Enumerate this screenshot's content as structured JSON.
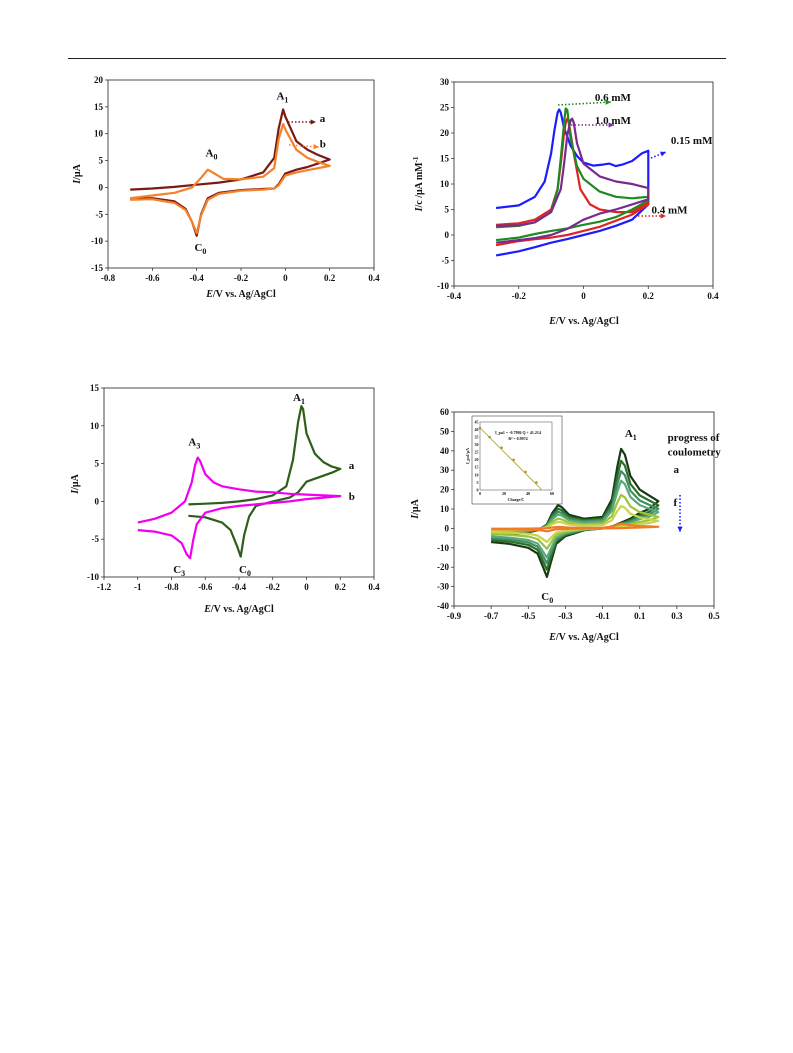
{
  "chart_data": [
    {
      "id": "p1",
      "type": "line",
      "xlabel": "E/V vs. Ag/AgCl",
      "ylabel": "I/μA",
      "xlim": [
        -0.8,
        0.4
      ],
      "ylim": [
        -15,
        20
      ],
      "xticks": [
        "-0.8",
        "-0.6",
        "-0.4",
        "-0.2",
        "0",
        "0.2",
        "0.4"
      ],
      "yticks": [
        "-15",
        "-10",
        "-5",
        "0",
        "5",
        "10",
        "15",
        "20"
      ],
      "series": [
        {
          "color": "#7a1a14",
          "x": [
            -0.7,
            -0.6,
            -0.5,
            -0.4,
            -0.3,
            -0.2,
            -0.1,
            -0.05,
            -0.03,
            -0.01,
            0.0,
            0.05,
            0.1,
            0.15,
            0.2,
            0.15,
            0.1,
            0.05,
            0.0,
            -0.03,
            -0.05,
            -0.1,
            -0.2,
            -0.3,
            -0.35,
            -0.38,
            -0.4,
            -0.42,
            -0.45,
            -0.5,
            -0.6,
            -0.7
          ],
          "y": [
            -0.4,
            -0.2,
            0.1,
            0.5,
            0.9,
            1.5,
            2.8,
            5.5,
            11.0,
            14.5,
            13.2,
            8.6,
            7.0,
            6.0,
            5.2,
            4.5,
            3.8,
            3.3,
            2.6,
            0.6,
            -0.2,
            -0.3,
            -0.5,
            -1.0,
            -2.0,
            -5.0,
            -9.0,
            -6.5,
            -4.0,
            -2.6,
            -2.0,
            -2.1
          ]
        },
        {
          "color": "#f5822a",
          "x": [
            -0.7,
            -0.6,
            -0.5,
            -0.42,
            -0.38,
            -0.35,
            -0.32,
            -0.28,
            -0.2,
            -0.1,
            -0.05,
            -0.03,
            -0.01,
            0.0,
            0.05,
            0.1,
            0.15,
            0.2,
            0.15,
            0.1,
            0.05,
            0.0,
            -0.03,
            -0.05,
            -0.1,
            -0.2,
            -0.3,
            -0.35,
            -0.38,
            -0.4,
            -0.42,
            -0.45,
            -0.5,
            -0.6,
            -0.7
          ],
          "y": [
            -2.0,
            -1.5,
            -1.0,
            0.0,
            1.8,
            3.3,
            2.6,
            1.6,
            1.5,
            2.0,
            3.6,
            9.0,
            11.8,
            10.8,
            7.0,
            5.5,
            4.7,
            4.0,
            3.6,
            3.2,
            2.8,
            2.2,
            0.4,
            -0.2,
            -0.4,
            -0.6,
            -1.2,
            -2.3,
            -5.2,
            -8.5,
            -6.5,
            -4.2,
            -2.9,
            -2.2,
            -2.3
          ]
        }
      ],
      "annotations": [
        {
          "text": "A",
          "sub": "1",
          "x": -0.04,
          "y": 16.4
        },
        {
          "text": "A",
          "sub": "0",
          "x": -0.36,
          "y": 5.8
        },
        {
          "text": "C",
          "sub": "0",
          "x": -0.41,
          "y": -11.8
        },
        {
          "text": "a",
          "x": 0.155,
          "y": 12.2
        },
        {
          "text": "b",
          "x": 0.155,
          "y": 7.4
        }
      ]
    },
    {
      "id": "p2",
      "type": "line",
      "xlabel": "E/V vs. Ag/AgCl",
      "ylabel": "I/c /μA mM",
      "ylabel_sup": "-1",
      "xlim": [
        -0.4,
        0.4
      ],
      "ylim": [
        -10,
        30
      ],
      "xticks": [
        "-0.4",
        "-0.2",
        "0",
        "0.2",
        "0.4"
      ],
      "yticks": [
        "-10",
        "-5",
        "0",
        "5",
        "10",
        "15",
        "20",
        "25",
        "30"
      ],
      "series": [
        {
          "color": "#1c1cff",
          "x": [
            -0.27,
            -0.2,
            -0.15,
            -0.12,
            -0.1,
            -0.09,
            -0.08,
            -0.075,
            -0.07,
            -0.06,
            -0.04,
            -0.02,
            0.0,
            0.03,
            0.06,
            0.08,
            0.1,
            0.12,
            0.15,
            0.18,
            0.2,
            0.2,
            0.15,
            0.1,
            0.05,
            0.0,
            -0.05,
            -0.1,
            -0.15,
            -0.2,
            -0.27
          ],
          "y": [
            5.3,
            5.8,
            7.5,
            10.5,
            16.0,
            20.5,
            24.0,
            24.6,
            24.0,
            21.0,
            17.5,
            15.5,
            14.2,
            13.6,
            13.8,
            14.0,
            13.5,
            13.8,
            14.5,
            16.0,
            16.5,
            6.0,
            3.0,
            1.8,
            0.8,
            0.0,
            -0.8,
            -1.5,
            -2.4,
            -3.2,
            -4.0
          ]
        },
        {
          "color": "#e02424",
          "x": [
            -0.27,
            -0.2,
            -0.15,
            -0.1,
            -0.08,
            -0.07,
            -0.06,
            -0.055,
            -0.05,
            -0.045,
            -0.03,
            -0.01,
            0.02,
            0.05,
            0.1,
            0.15,
            0.2,
            0.2,
            0.15,
            0.1,
            0.05,
            0.0,
            -0.05,
            -0.1,
            -0.15,
            -0.2,
            -0.27
          ],
          "y": [
            2.0,
            2.3,
            3.0,
            5.0,
            9.0,
            14.0,
            20.0,
            22.0,
            22.8,
            22.0,
            16.0,
            9.0,
            6.0,
            5.0,
            4.5,
            4.5,
            6.5,
            6.0,
            4.0,
            2.8,
            1.6,
            0.8,
            0.0,
            -0.5,
            -0.8,
            -1.2,
            -2.0
          ]
        },
        {
          "color": "#1e8a22",
          "x": [
            -0.27,
            -0.2,
            -0.15,
            -0.1,
            -0.08,
            -0.07,
            -0.06,
            -0.055,
            -0.05,
            -0.04,
            -0.02,
            0.0,
            0.05,
            0.1,
            0.15,
            0.2,
            0.2,
            0.15,
            0.1,
            0.05,
            0.0,
            -0.05,
            -0.1,
            -0.15,
            -0.2,
            -0.27
          ],
          "y": [
            1.5,
            1.8,
            2.5,
            4.5,
            9.0,
            15.0,
            22.0,
            24.8,
            24.5,
            19.0,
            13.5,
            11.0,
            8.5,
            7.5,
            7.2,
            7.5,
            6.8,
            5.0,
            3.5,
            2.6,
            2.0,
            1.3,
            0.8,
            0.2,
            -0.5,
            -1.0
          ]
        },
        {
          "color": "#7a2a8c",
          "x": [
            -0.27,
            -0.2,
            -0.15,
            -0.1,
            -0.07,
            -0.06,
            -0.05,
            -0.04,
            -0.035,
            -0.03,
            -0.02,
            0.0,
            0.05,
            0.1,
            0.15,
            0.2,
            0.2,
            0.15,
            0.1,
            0.05,
            0.0,
            -0.05,
            -0.1,
            -0.15,
            -0.2,
            -0.27
          ],
          "y": [
            1.8,
            1.9,
            2.5,
            4.5,
            9.0,
            14.0,
            19.5,
            22.5,
            22.8,
            22.0,
            18.0,
            14.0,
            11.5,
            10.5,
            10.0,
            9.2,
            7.0,
            6.0,
            5.0,
            4.2,
            3.0,
            1.2,
            0.0,
            -0.6,
            -1.0,
            -1.5
          ]
        }
      ],
      "annotations": [
        {
          "text": "0.6 mM",
          "x": 0.035,
          "y": 26.3
        },
        {
          "text": "1.0 mM",
          "x": 0.035,
          "y": 21.8
        },
        {
          "text": "0.15 mM",
          "x": 0.27,
          "y": 17.8
        },
        {
          "text": "0.4 mM",
          "x": 0.21,
          "y": 4.2
        }
      ]
    },
    {
      "id": "p3",
      "type": "line",
      "xlabel": "E/V vs. Ag/AgCl",
      "ylabel": "I/μA",
      "xlim": [
        -1.2,
        0.4
      ],
      "ylim": [
        -10,
        15
      ],
      "xticks": [
        "-1.2",
        "-1",
        "-0.8",
        "-0.6",
        "-0.4",
        "-0.2",
        "0",
        "0.2",
        "0.4"
      ],
      "yticks": [
        "-10",
        "-5",
        "0",
        "5",
        "10",
        "15"
      ],
      "series": [
        {
          "color": "#2e5e1a",
          "x": [
            -0.7,
            -0.6,
            -0.5,
            -0.4,
            -0.3,
            -0.2,
            -0.12,
            -0.08,
            -0.05,
            -0.03,
            -0.02,
            0.0,
            0.05,
            0.1,
            0.15,
            0.2,
            0.15,
            0.1,
            0.05,
            0.0,
            -0.05,
            -0.1,
            -0.2,
            -0.3,
            -0.34,
            -0.37,
            -0.39,
            -0.41,
            -0.45,
            -0.5,
            -0.6,
            -0.7
          ],
          "y": [
            -0.4,
            -0.3,
            -0.2,
            0.0,
            0.3,
            0.8,
            2.0,
            5.5,
            10.5,
            12.6,
            12.2,
            9.0,
            6.3,
            5.2,
            4.6,
            4.3,
            3.8,
            3.4,
            3.0,
            2.6,
            1.2,
            0.5,
            0.0,
            -0.6,
            -2.0,
            -4.5,
            -7.3,
            -6.0,
            -3.8,
            -2.8,
            -2.1,
            -1.9
          ]
        },
        {
          "color": "#f000f0",
          "x": [
            -1.0,
            -0.9,
            -0.8,
            -0.72,
            -0.68,
            -0.66,
            -0.645,
            -0.63,
            -0.6,
            -0.55,
            -0.5,
            -0.4,
            -0.3,
            -0.2,
            -0.1,
            0.0,
            0.1,
            0.2,
            0.1,
            0.0,
            -0.1,
            -0.2,
            -0.3,
            -0.4,
            -0.5,
            -0.6,
            -0.65,
            -0.67,
            -0.69,
            -0.71,
            -0.74,
            -0.8,
            -0.9,
            -1.0
          ],
          "y": [
            -2.8,
            -2.3,
            -1.5,
            0.0,
            2.5,
            4.8,
            5.8,
            5.3,
            3.6,
            2.5,
            2.0,
            1.6,
            1.3,
            1.2,
            1.0,
            0.9,
            0.8,
            0.7,
            0.5,
            0.3,
            0.0,
            -0.2,
            -0.4,
            -0.6,
            -0.9,
            -1.5,
            -3.0,
            -5.0,
            -7.5,
            -7.0,
            -5.5,
            -4.5,
            -4.0,
            -3.8
          ]
        }
      ],
      "annotations": [
        {
          "text": "A",
          "sub": "1",
          "x": -0.08,
          "y": 13.3
        },
        {
          "text": "A",
          "sub": "3",
          "x": -0.7,
          "y": 7.4
        },
        {
          "text": "C",
          "sub": "3",
          "x": -0.79,
          "y": -9.5
        },
        {
          "text": "C",
          "sub": "0",
          "x": -0.4,
          "y": -9.5
        },
        {
          "text": "a",
          "x": 0.25,
          "y": 4.3
        },
        {
          "text": "b",
          "x": 0.25,
          "y": 0.2
        }
      ]
    },
    {
      "id": "p4",
      "type": "line",
      "xlabel": "E/V vs. Ag/AgCl",
      "ylabel": "I/μA",
      "xlim": [
        -0.9,
        0.5
      ],
      "ylim": [
        -40,
        60
      ],
      "xticks": [
        "-0.9",
        "-0.7",
        "-0.5",
        "-0.3",
        "-0.1",
        "0.1",
        "0.3",
        "0.5"
      ],
      "yticks": [
        "-40",
        "-30",
        "-20",
        "-10",
        "0",
        "10",
        "20",
        "30",
        "40",
        "50",
        "60"
      ],
      "series": [
        {
          "color": "#173a14",
          "scale": 1.0
        },
        {
          "color": "#2f6e2a",
          "scale": 0.85
        },
        {
          "color": "#3f8f62",
          "scale": 0.72
        },
        {
          "color": "#5ba87a",
          "scale": 0.6
        },
        {
          "color": "#9cc33a",
          "scale": 0.42
        },
        {
          "color": "#c8d44a",
          "scale": 0.28
        },
        {
          "color": "#f07a2a",
          "scale": 0.06
        }
      ],
      "base_curve": {
        "x": [
          -0.7,
          -0.6,
          -0.5,
          -0.45,
          -0.4,
          -0.37,
          -0.34,
          -0.32,
          -0.28,
          -0.2,
          -0.1,
          -0.05,
          -0.02,
          0.0,
          0.02,
          0.05,
          0.1,
          0.15,
          0.2,
          0.15,
          0.1,
          0.05,
          0.0,
          -0.05,
          -0.1,
          -0.2,
          -0.3,
          -0.35,
          -0.38,
          -0.4,
          -0.42,
          -0.45,
          -0.5,
          -0.6,
          -0.7
        ],
        "y": [
          -3,
          -3,
          -2,
          -1,
          2,
          8,
          12,
          11,
          7,
          5,
          6,
          15,
          32,
          41,
          38,
          27,
          20,
          17,
          14,
          10,
          8,
          5,
          3,
          1,
          0,
          -1,
          -4,
          -8,
          -18,
          -25,
          -20,
          -13,
          -10,
          -8,
          -7
        ]
      },
      "annotations": [
        {
          "text": "A",
          "sub": "1",
          "x": 0.02,
          "y": 47
        },
        {
          "text": "C",
          "sub": "0",
          "x": -0.43,
          "y": -37
        },
        {
          "text": "progress of",
          "x": 0.25,
          "y": 45
        },
        {
          "text": "coulometry",
          "x": 0.25,
          "y": 37.5
        },
        {
          "text": "a",
          "x": 0.282,
          "y": 28.5
        },
        {
          "text": "f",
          "x": 0.282,
          "y": 11.5
        }
      ],
      "inset": {
        "type": "scatter",
        "xlabel": "Charge/C",
        "ylabel": "I_pa1/μA",
        "xlim": [
          0,
          60
        ],
        "ylim": [
          0,
          45
        ],
        "xticks": [
          "0",
          "20",
          "40",
          "60"
        ],
        "yticks": [
          "0",
          "5",
          "10",
          "15",
          "20",
          "25",
          "30",
          "35",
          "40",
          "45"
        ],
        "points_x": [
          0,
          8,
          18,
          28,
          38,
          47
        ],
        "points_y": [
          41,
          35,
          28,
          20,
          12,
          5
        ],
        "fit": {
          "slope": -0.7986,
          "intercept": 41.214
        },
        "equation": "I_pa1 = -0.7986 Q + 41.214",
        "r2": "R² = 0.9974"
      }
    }
  ]
}
